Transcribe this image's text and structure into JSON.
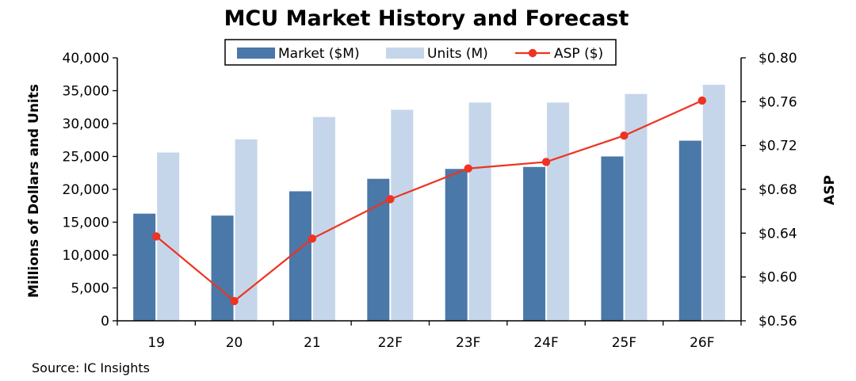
{
  "chart_data": {
    "type": "bar",
    "title": "MCU Market History and Forecast",
    "categories": [
      "19",
      "20",
      "21",
      "22F",
      "23F",
      "24F",
      "25F",
      "26F"
    ],
    "series": [
      {
        "name": "Market ($M)",
        "type": "bar",
        "axis": "left",
        "color": "#4a78a8",
        "values": [
          16300,
          16000,
          19700,
          21600,
          23100,
          23400,
          25000,
          27400
        ]
      },
      {
        "name": "Units (M)",
        "type": "bar",
        "axis": "left",
        "color": "#c5d6ea",
        "values": [
          25600,
          27600,
          31000,
          32100,
          33200,
          33200,
          34500,
          35900
        ]
      },
      {
        "name": "ASP ($)",
        "type": "line",
        "axis": "right",
        "color": "#ee3322",
        "values": [
          0.637,
          0.578,
          0.635,
          0.671,
          0.699,
          0.705,
          0.729,
          0.761
        ]
      }
    ],
    "ylabel": "Millions of Dollars and Units",
    "ylabel_right": "ASP",
    "ylim": [
      0,
      40000
    ],
    "yticks": [
      "0",
      "5,000",
      "10,000",
      "15,000",
      "20,000",
      "25,000",
      "30,000",
      "35,000",
      "40,000"
    ],
    "ylim_right": [
      0.56,
      0.8
    ],
    "yticks_right": [
      "$0.56",
      "$0.60",
      "$0.64",
      "$0.68",
      "$0.72",
      "$0.76",
      "$0.80"
    ],
    "grid": false,
    "legend_position": "top-center",
    "source": "Source:  IC Insights"
  }
}
